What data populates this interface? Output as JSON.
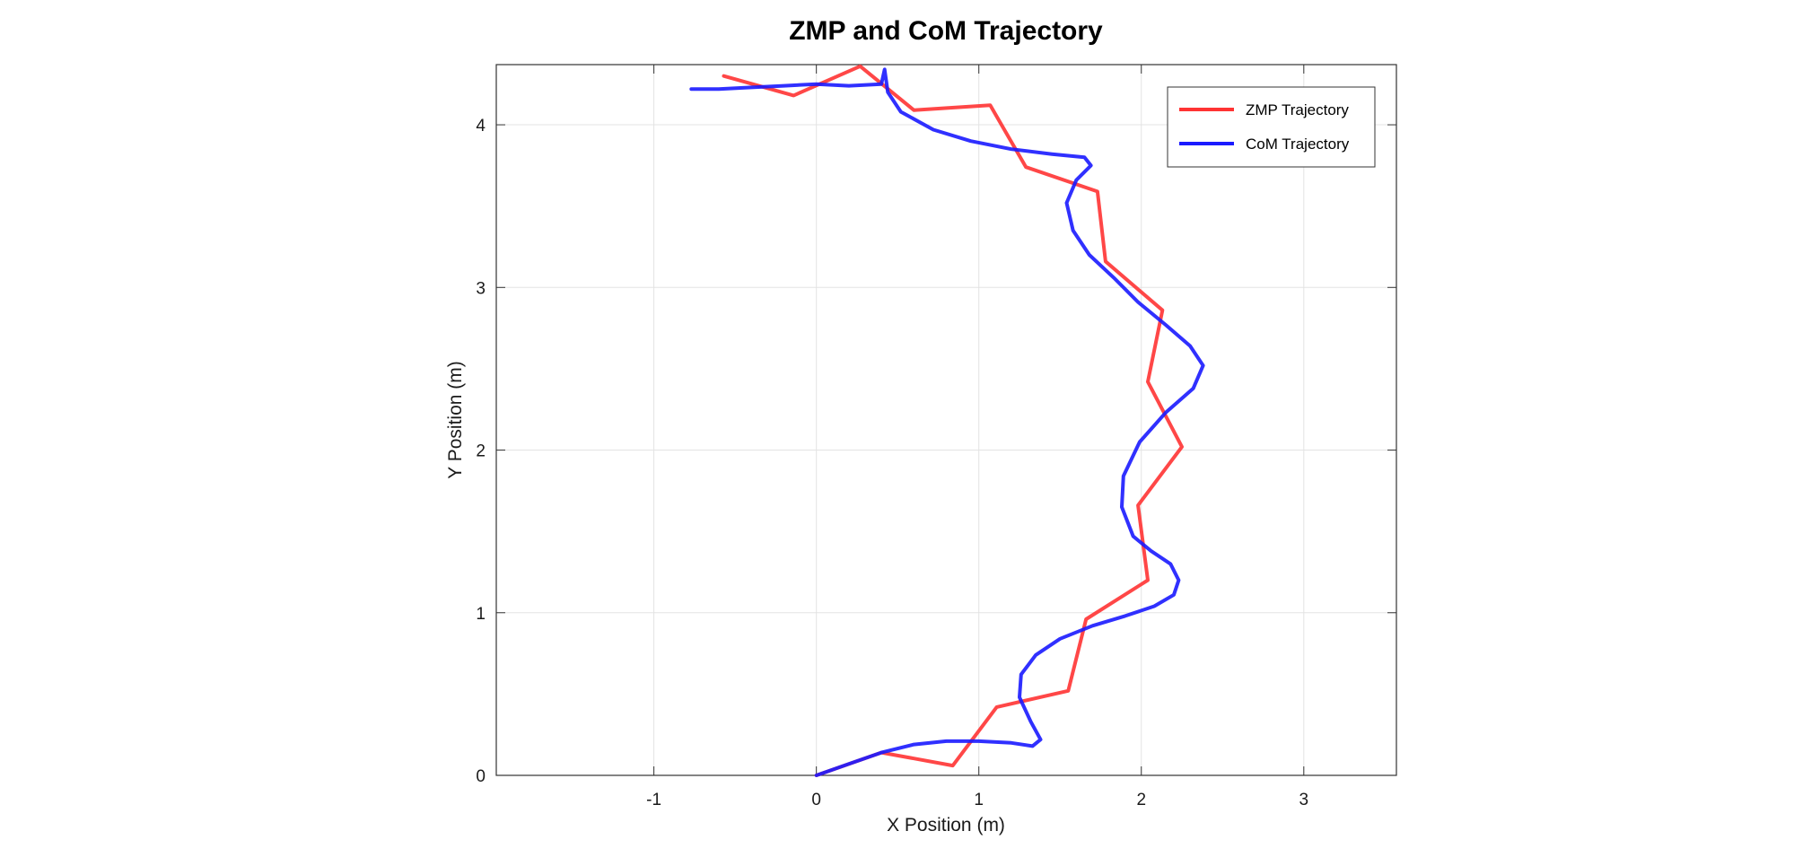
{
  "chart_data": {
    "type": "line",
    "title": "ZMP and CoM Trajectory",
    "xlabel": "X Position (m)",
    "ylabel": "Y Position (m)",
    "xlim": [
      -1.97,
      3.57
    ],
    "ylim": [
      0,
      4.37
    ],
    "xticks": [
      -1,
      0,
      1,
      2,
      3
    ],
    "yticks": [
      0,
      1,
      2,
      3,
      4
    ],
    "grid": true,
    "legend_position": "top-right",
    "series": [
      {
        "name": "ZMP Trajectory",
        "color": "#ff3333",
        "x": [
          0.0,
          0.4,
          0.84,
          1.11,
          1.55,
          1.66,
          2.04,
          1.98,
          2.25,
          2.04,
          2.13,
          1.78,
          1.73,
          1.29,
          1.07,
          0.6,
          0.27,
          -0.14,
          -0.57
        ],
        "y": [
          0.0,
          0.14,
          0.06,
          0.42,
          0.52,
          0.96,
          1.2,
          1.66,
          2.02,
          2.42,
          2.86,
          3.16,
          3.59,
          3.74,
          4.12,
          4.09,
          4.36,
          4.18,
          4.3
        ]
      },
      {
        "name": "CoM Trajectory",
        "color": "#1a1aff",
        "x": [
          0.0,
          0.2,
          0.4,
          0.6,
          0.8,
          1.0,
          1.2,
          1.33,
          1.38,
          1.32,
          1.25,
          1.26,
          1.35,
          1.5,
          1.7,
          1.9,
          2.08,
          2.2,
          2.23,
          2.18,
          2.06,
          1.95,
          1.88,
          1.89,
          1.99,
          2.15,
          2.32,
          2.38,
          2.3,
          2.15,
          1.98,
          1.83,
          1.68,
          1.58,
          1.54,
          1.6,
          1.69,
          1.65,
          1.45,
          1.2,
          0.95,
          0.72,
          0.52,
          0.44,
          0.42,
          0.4,
          0.2,
          0.0,
          -0.2,
          -0.4,
          -0.6,
          -0.77
        ],
        "y": [
          0.0,
          0.07,
          0.14,
          0.19,
          0.21,
          0.21,
          0.2,
          0.18,
          0.22,
          0.33,
          0.48,
          0.62,
          0.74,
          0.84,
          0.92,
          0.98,
          1.04,
          1.11,
          1.2,
          1.3,
          1.38,
          1.47,
          1.65,
          1.84,
          2.05,
          2.23,
          2.38,
          2.52,
          2.64,
          2.77,
          2.91,
          3.06,
          3.2,
          3.35,
          3.52,
          3.66,
          3.75,
          3.8,
          3.82,
          3.85,
          3.9,
          3.97,
          4.08,
          4.2,
          4.34,
          4.25,
          4.24,
          4.25,
          4.24,
          4.23,
          4.22,
          4.22
        ]
      }
    ]
  }
}
